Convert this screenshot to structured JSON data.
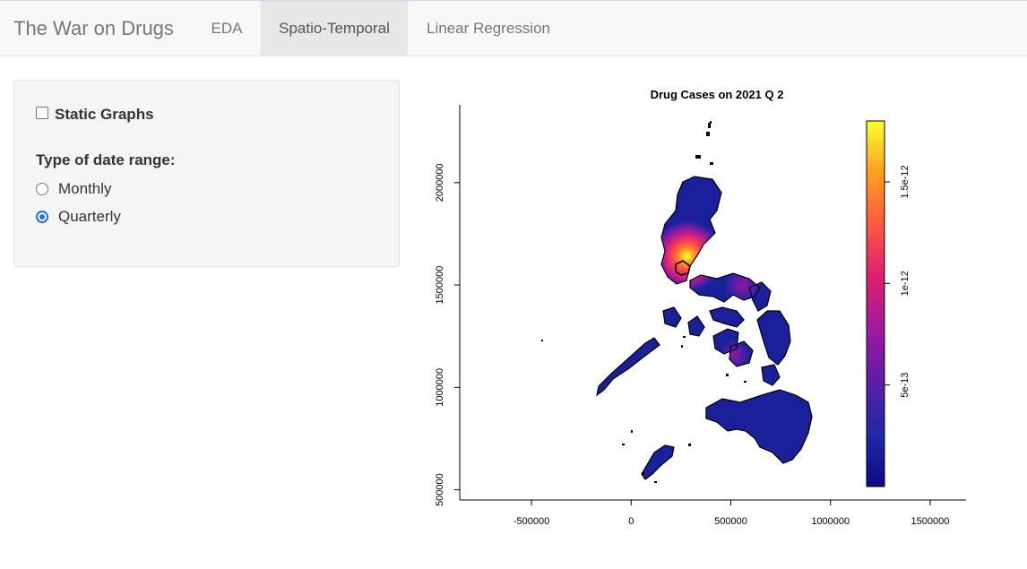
{
  "navbar": {
    "brand": "The War on Drugs",
    "tabs": [
      {
        "label": "EDA",
        "active": false
      },
      {
        "label": "Spatio-Temporal",
        "active": true
      },
      {
        "label": "Linear Regression",
        "active": false
      }
    ]
  },
  "sidebar": {
    "static_graphs": {
      "label": "Static Graphs",
      "checked": false
    },
    "date_range": {
      "label": "Type of date range:",
      "options": [
        {
          "label": "Monthly",
          "selected": false
        },
        {
          "label": "Quarterly",
          "selected": true
        }
      ]
    }
  },
  "chart_data": {
    "type": "heatmap",
    "title": "Drug Cases on  2021 Q 2",
    "x_ticks": [
      "-500000",
      "0",
      "500000",
      "1000000",
      "1500000"
    ],
    "x_tick_values": [
      -500000,
      0,
      500000,
      1000000,
      1500000
    ],
    "y_ticks": [
      "500000",
      "1000000",
      "1500000",
      "2000000"
    ],
    "y_tick_values": [
      500000,
      1000000,
      1500000,
      2000000
    ],
    "legend": {
      "ticks": [
        "5e-13",
        "1e-12",
        "1.5e-12"
      ],
      "tick_values": [
        5e-13,
        1e-12,
        1.5e-12
      ],
      "range": [
        0,
        1.8e-12
      ],
      "palette": [
        "#0d0a8a",
        "#1e2aa8",
        "#5a1ea8",
        "#9a1aa0",
        "#e0206f",
        "#ff5a40",
        "#ffa020",
        "#ffff30"
      ]
    },
    "hotspots": [
      {
        "x": 280000,
        "y": 1640000,
        "value": 1.8e-12
      },
      {
        "x": 560000,
        "y": 1500000,
        "value": 4.5e-13
      },
      {
        "x": 520000,
        "y": 1160000,
        "value": 3e-13
      }
    ],
    "axes_limits": {
      "x": [
        -860000,
        1680000
      ],
      "y": [
        450000,
        2380000
      ]
    }
  }
}
